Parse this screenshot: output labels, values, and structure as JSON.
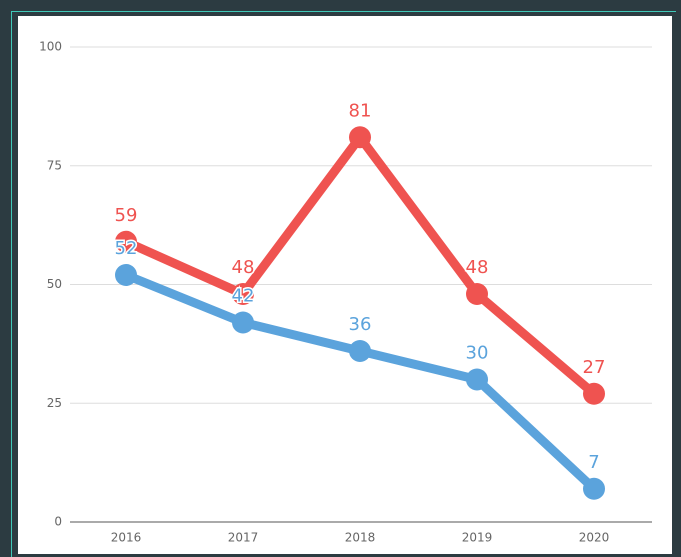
{
  "chart_data": {
    "type": "line",
    "categories": [
      "2016",
      "2017",
      "2018",
      "2019",
      "2020"
    ],
    "series": [
      {
        "color": "#ef5350",
        "values": [
          59,
          48,
          81,
          48,
          27
        ]
      },
      {
        "color": "#5ba3dc",
        "values": [
          52,
          42,
          36,
          30,
          7
        ]
      }
    ],
    "ylim": [
      0,
      100
    ],
    "yticks": [
      0,
      25,
      50,
      75,
      100
    ],
    "grid": true,
    "data_labels": true
  }
}
